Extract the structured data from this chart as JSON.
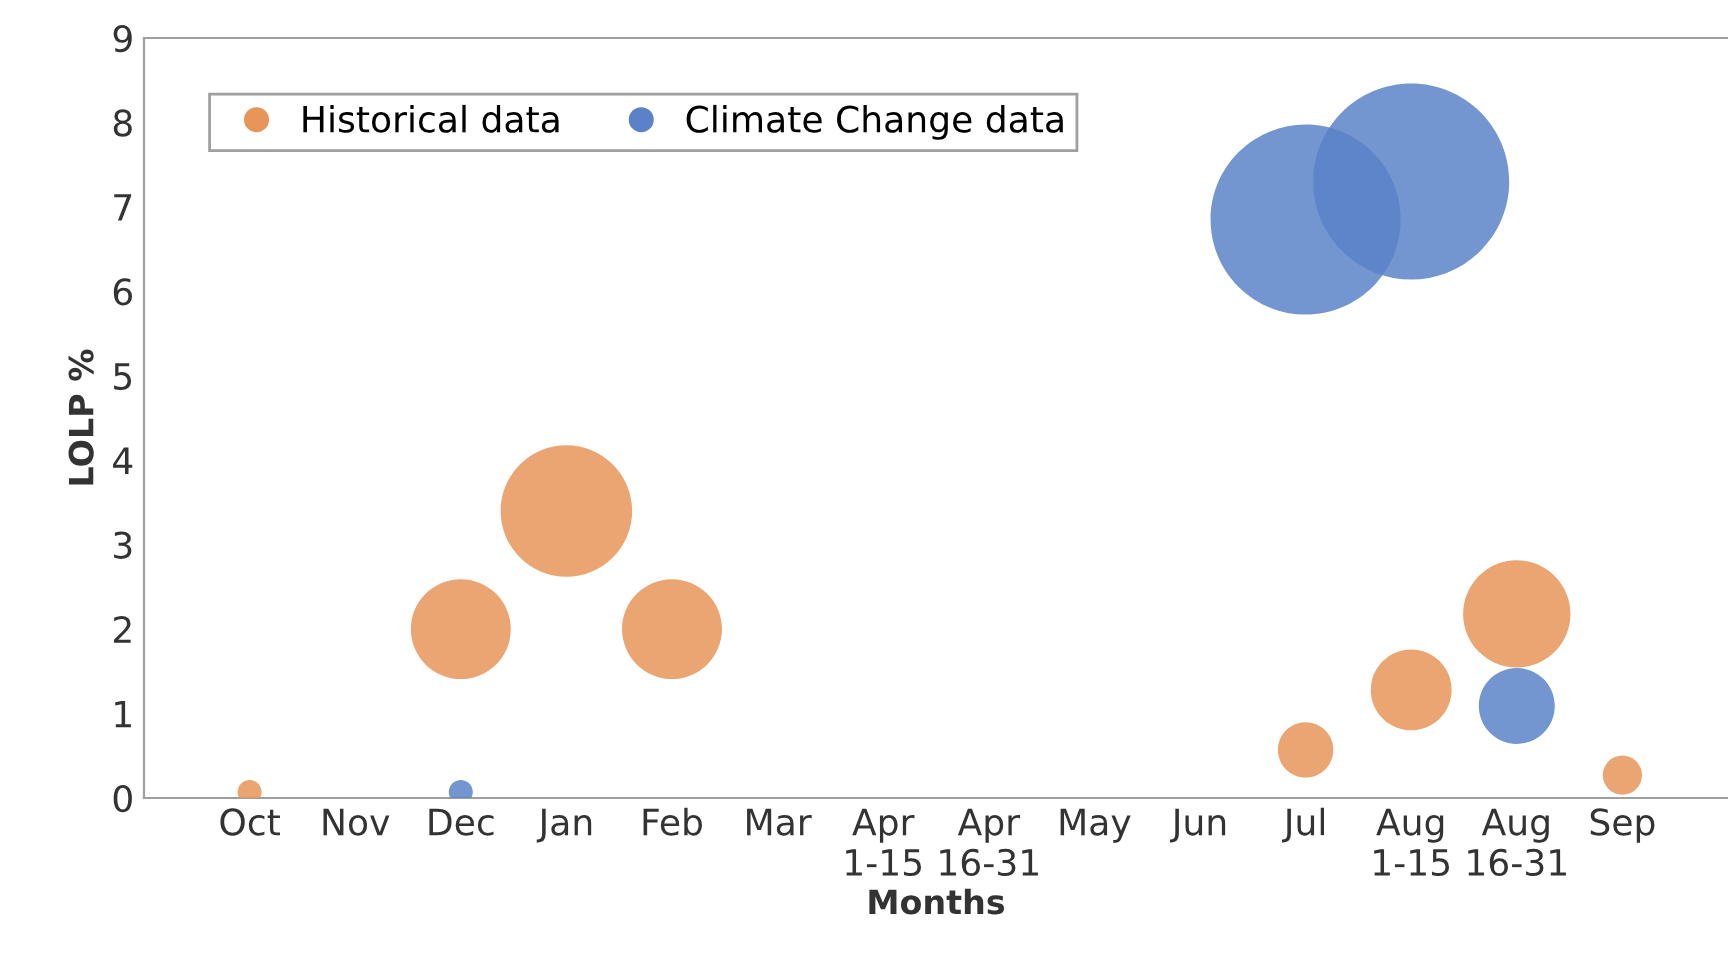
{
  "chart_data": {
    "type": "bubble",
    "xlabel": "Months",
    "ylabel": "LOLP %",
    "categories": [
      "Oct",
      "Nov",
      "Dec",
      "Jan",
      "Feb",
      "Mar",
      "Apr\n1-15",
      "Apr\n16-31",
      "May",
      "Jun",
      "Jul",
      "Aug\n1-15",
      "Aug\n16-31",
      "Sep"
    ],
    "series": [
      {
        "name": "Historical data",
        "color": "#e8955a",
        "values": [
          0.07,
          null,
          2.0,
          3.4,
          2.0,
          null,
          null,
          null,
          null,
          null,
          0.57,
          1.28,
          2.18,
          0.27
        ],
        "sizes": [
          0.015,
          null,
          0.26,
          0.45,
          0.26,
          null,
          null,
          null,
          null,
          null,
          0.08,
          0.17,
          0.3,
          0.04
        ]
      },
      {
        "name": "Climate Change data",
        "color": "#5b82c8",
        "values": [
          null,
          null,
          0.07,
          null,
          null,
          null,
          null,
          null,
          null,
          null,
          6.85,
          7.3,
          1.09,
          null
        ],
        "sizes": [
          null,
          null,
          0.015,
          null,
          null,
          null,
          null,
          null,
          null,
          null,
          0.94,
          1.0,
          0.15,
          null
        ]
      }
    ],
    "ylim": [
      0,
      9
    ],
    "yticks": [
      0,
      1,
      2,
      3,
      4,
      5,
      6,
      7,
      8,
      9
    ],
    "grid": false,
    "legend": "top left"
  }
}
